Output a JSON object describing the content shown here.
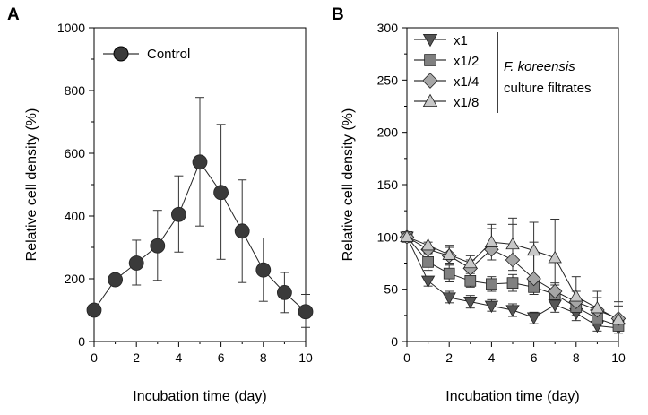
{
  "chart_data": [
    {
      "panel": "A",
      "type": "line",
      "xlabel": "Incubation time (day)",
      "ylabel": "Relative cell density (%)",
      "xlim": [
        0,
        10
      ],
      "ylim": [
        0,
        1000
      ],
      "xticks": [
        "0",
        "2",
        "4",
        "6",
        "8",
        "10"
      ],
      "yticks": [
        "0",
        "200",
        "400",
        "600",
        "800",
        "1000"
      ],
      "legend_position": "top-left",
      "grid": false,
      "x": [
        0,
        1,
        2,
        3,
        4,
        5,
        6,
        7,
        8,
        9,
        10
      ],
      "series": [
        {
          "name": "Control",
          "marker": "circle",
          "color": "#3a3a3a",
          "values": [
            100,
            197,
            250,
            305,
            405,
            572,
            475,
            352,
            228,
            156,
            95
          ],
          "err_upper": [
            100,
            197,
            323,
            418,
            528,
            778,
            692,
            515,
            330,
            220,
            150
          ],
          "err_lower": [
            100,
            197,
            180,
            195,
            285,
            368,
            262,
            188,
            128,
            92,
            45
          ]
        }
      ]
    },
    {
      "panel": "B",
      "type": "line",
      "xlabel": "Incubation time (day)",
      "ylabel": "Relative cell density (%)",
      "xlim": [
        0,
        10
      ],
      "ylim": [
        0,
        300
      ],
      "xticks": [
        "0",
        "2",
        "4",
        "6",
        "8",
        "10"
      ],
      "yticks": [
        "0",
        "50",
        "100",
        "150",
        "200",
        "250",
        "300"
      ],
      "legend_position": "top-left",
      "legend_note": {
        "line1": "F. koreensis",
        "line2": "culture filtrates"
      },
      "grid": false,
      "x": [
        0,
        1,
        2,
        3,
        4,
        5,
        6,
        7,
        8,
        9,
        10
      ],
      "series": [
        {
          "name": "x1",
          "marker": "triangle-down",
          "color": "#555555",
          "values": [
            100,
            58,
            42,
            38,
            34,
            30,
            23,
            35,
            27,
            15,
            13
          ],
          "err_upper": [
            100,
            62,
            48,
            44,
            40,
            36,
            28,
            42,
            34,
            20,
            18
          ],
          "err_lower": [
            100,
            53,
            37,
            32,
            29,
            24,
            17,
            28,
            20,
            10,
            8
          ]
        },
        {
          "name": "x1/2",
          "marker": "square",
          "color": "#808080",
          "values": [
            100,
            76,
            65,
            58,
            55,
            56,
            52,
            45,
            33,
            22,
            15
          ],
          "err_upper": [
            100,
            84,
            73,
            65,
            62,
            64,
            60,
            54,
            42,
            30,
            24
          ],
          "err_lower": [
            100,
            68,
            57,
            52,
            48,
            48,
            45,
            37,
            25,
            15,
            8
          ]
        },
        {
          "name": "x1/4",
          "marker": "diamond",
          "color": "#a6a6a6",
          "values": [
            100,
            88,
            82,
            70,
            88,
            78,
            60,
            48,
            38,
            30,
            22
          ],
          "err_upper": [
            100,
            95,
            90,
            78,
            112,
            118,
            95,
            56,
            48,
            42,
            34
          ],
          "err_lower": [
            100,
            80,
            74,
            62,
            78,
            68,
            50,
            38,
            28,
            20,
            12
          ]
        },
        {
          "name": "x1/8",
          "marker": "triangle-up",
          "color": "#c8c8c8",
          "values": [
            100,
            92,
            83,
            75,
            95,
            93,
            87,
            80,
            43,
            32,
            21
          ],
          "err_upper": [
            100,
            99,
            92,
            82,
            108,
            112,
            114,
            117,
            62,
            48,
            38
          ],
          "err_lower": [
            100,
            85,
            75,
            68,
            85,
            78,
            62,
            45,
            32,
            22,
            12
          ]
        }
      ]
    }
  ]
}
